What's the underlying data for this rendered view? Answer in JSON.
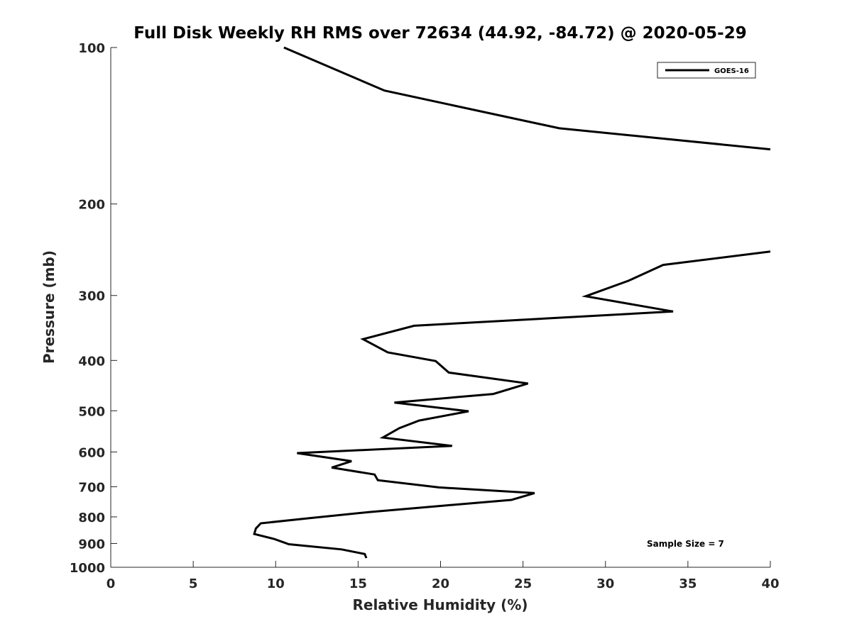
{
  "chart_data": {
    "type": "line",
    "title": "Full Disk Weekly RH RMS over 72634 (44.92, -84.72) @ 2020-05-29",
    "xlabel": "Relative Humidity (%)",
    "ylabel": "Pressure (mb)",
    "xlim": [
      0,
      40
    ],
    "ylim": [
      100,
      1000
    ],
    "y_scale": "log",
    "y_reversed": true,
    "grid": false,
    "legend_position": "top-right",
    "x_ticks": [
      0,
      5,
      10,
      15,
      20,
      25,
      30,
      35,
      40
    ],
    "x_tick_labels": [
      "0",
      "5",
      "10",
      "15",
      "20",
      "25",
      "30",
      "35",
      "40"
    ],
    "y_ticks": [
      100,
      200,
      300,
      400,
      500,
      600,
      700,
      800,
      900,
      1000
    ],
    "y_tick_labels": [
      "100",
      "200",
      "300",
      "400",
      "500",
      "600",
      "700",
      "800",
      "900",
      "1000"
    ],
    "annotation": "Sample Size = 7",
    "series": [
      {
        "name": "GOES-16",
        "color": "#000000",
        "segments": [
          {
            "points": [
              {
                "x": 10.5,
                "y": 100
              },
              {
                "x": 16.6,
                "y": 121
              },
              {
                "x": 27.2,
                "y": 143
              },
              {
                "x": 40.0,
                "y": 157
              }
            ]
          },
          {
            "points": [
              {
                "x": 40.0,
                "y": 247
              },
              {
                "x": 33.5,
                "y": 262
              },
              {
                "x": 31.4,
                "y": 281
              },
              {
                "x": 28.8,
                "y": 301
              },
              {
                "x": 34.1,
                "y": 322
              },
              {
                "x": 18.4,
                "y": 343
              },
              {
                "x": 15.3,
                "y": 364
              },
              {
                "x": 16.8,
                "y": 386
              },
              {
                "x": 19.7,
                "y": 401
              },
              {
                "x": 20.5,
                "y": 422
              },
              {
                "x": 25.3,
                "y": 443
              },
              {
                "x": 23.2,
                "y": 464
              },
              {
                "x": 17.2,
                "y": 482
              },
              {
                "x": 21.7,
                "y": 501
              },
              {
                "x": 18.7,
                "y": 522
              },
              {
                "x": 17.5,
                "y": 540
              },
              {
                "x": 16.5,
                "y": 563
              },
              {
                "x": 20.7,
                "y": 584
              },
              {
                "x": 11.3,
                "y": 603
              },
              {
                "x": 14.6,
                "y": 625
              },
              {
                "x": 13.4,
                "y": 643
              },
              {
                "x": 16.0,
                "y": 663
              },
              {
                "x": 16.2,
                "y": 680
              },
              {
                "x": 19.9,
                "y": 702
              },
              {
                "x": 25.7,
                "y": 720
              },
              {
                "x": 24.3,
                "y": 742
              },
              {
                "x": 20.0,
                "y": 762
              },
              {
                "x": 15.7,
                "y": 783
              },
              {
                "x": 12.0,
                "y": 805
              },
              {
                "x": 9.1,
                "y": 823
              },
              {
                "x": 8.8,
                "y": 842
              },
              {
                "x": 8.7,
                "y": 863
              },
              {
                "x": 9.9,
                "y": 882
              },
              {
                "x": 10.8,
                "y": 903
              },
              {
                "x": 14.0,
                "y": 924
              },
              {
                "x": 15.4,
                "y": 943
              },
              {
                "x": 15.5,
                "y": 960
              }
            ]
          }
        ]
      }
    ]
  }
}
